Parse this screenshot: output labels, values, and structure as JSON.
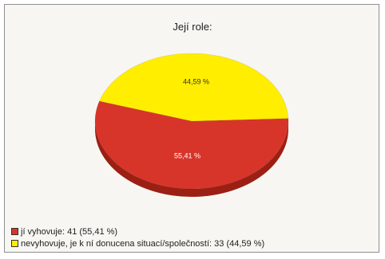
{
  "chart_data": {
    "type": "pie",
    "title": "Její role:",
    "slices": [
      {
        "label": "jí vyhovuje",
        "count": 41,
        "value": 55.41,
        "value_label": "55,41 %",
        "legend": "jí vyhovuje: 41 (55,41 %)",
        "color": "#d8352a",
        "side_color": "#9c1f14"
      },
      {
        "label": "nevyhovuje, je k ní donucena situací/společností",
        "count": 33,
        "value": 44.59,
        "value_label": "44,59 %",
        "legend": "nevyhovuje, je k ní donucena situací/společností: 33 (44,59 %)",
        "color": "#ffee00",
        "side_color": "#c8b800"
      }
    ],
    "legend_position": "bottom-left"
  }
}
